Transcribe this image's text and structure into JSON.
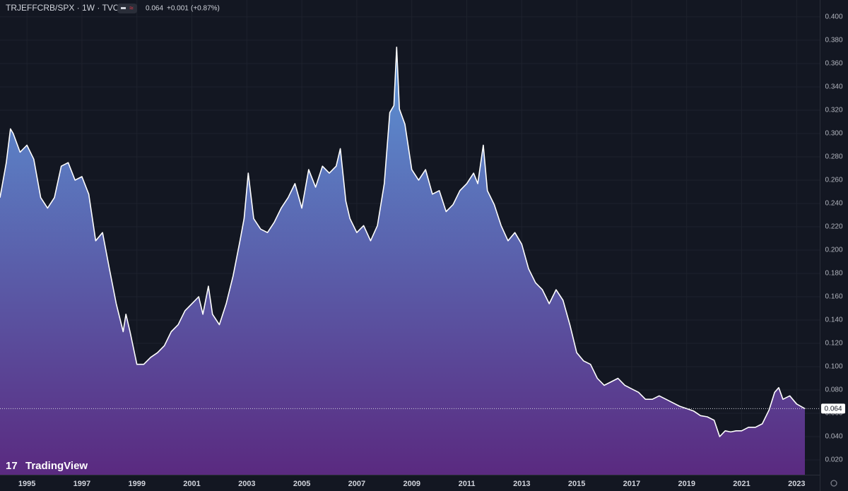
{
  "header": {
    "symbol": "TRJEFFCRB/SPX · 1W · TVC",
    "change": "+0.001",
    "change_pct": "(+0.87%)"
  },
  "brand": "TradingView",
  "chart_data": {
    "type": "area",
    "x": [
      1994.02,
      1994.25,
      1994.4,
      1994.5,
      1994.75,
      1995,
      1995.25,
      1995.5,
      1995.75,
      1996,
      1996.25,
      1996.5,
      1996.75,
      1997,
      1997.25,
      1997.5,
      1997.75,
      1998,
      1998.25,
      1998.5,
      1998.6,
      1998.75,
      1999,
      1999.25,
      1999.5,
      1999.75,
      2000,
      2000.25,
      2000.5,
      2000.75,
      2001,
      2001.25,
      2001.4,
      2001.6,
      2001.75,
      2002,
      2002.25,
      2002.5,
      2002.75,
      2002.9,
      2003.05,
      2003.25,
      2003.5,
      2003.75,
      2004,
      2004.25,
      2004.5,
      2004.75,
      2005,
      2005.25,
      2005.5,
      2005.75,
      2006,
      2006.25,
      2006.4,
      2006.6,
      2006.75,
      2007,
      2007.25,
      2007.5,
      2007.75,
      2008,
      2008.2,
      2008.35,
      2008.45,
      2008.55,
      2008.75,
      2009,
      2009.25,
      2009.5,
      2009.75,
      2010,
      2010.25,
      2010.5,
      2010.75,
      2011,
      2011.25,
      2011.4,
      2011.6,
      2011.75,
      2012,
      2012.25,
      2012.5,
      2012.75,
      2013,
      2013.25,
      2013.5,
      2013.75,
      2014,
      2014.25,
      2014.5,
      2014.75,
      2015,
      2015.25,
      2015.5,
      2015.75,
      2016,
      2016.25,
      2016.5,
      2016.75,
      2017,
      2017.25,
      2017.5,
      2017.75,
      2018,
      2018.25,
      2018.5,
      2018.75,
      2019,
      2019.25,
      2019.5,
      2019.75,
      2020,
      2020.2,
      2020.4,
      2020.6,
      2020.8,
      2021,
      2021.25,
      2021.5,
      2021.75,
      2022,
      2022.2,
      2022.35,
      2022.5,
      2022.75,
      2023,
      2023.3
    ],
    "series": [
      {
        "color": "#ffffff",
        "fill_top": "#5b95d6",
        "fill_bottom": "#5a2a80",
        "values": [
          0.245,
          0.275,
          0.304,
          0.3,
          0.284,
          0.29,
          0.278,
          0.245,
          0.236,
          0.245,
          0.272,
          0.275,
          0.26,
          0.263,
          0.248,
          0.208,
          0.215,
          0.184,
          0.154,
          0.13,
          0.145,
          0.13,
          0.102,
          0.102,
          0.108,
          0.112,
          0.118,
          0.13,
          0.136,
          0.148,
          0.154,
          0.16,
          0.145,
          0.169,
          0.145,
          0.136,
          0.154,
          0.178,
          0.208,
          0.227,
          0.266,
          0.227,
          0.218,
          0.215,
          0.224,
          0.236,
          0.245,
          0.257,
          0.236,
          0.269,
          0.254,
          0.272,
          0.266,
          0.272,
          0.287,
          0.242,
          0.227,
          0.215,
          0.221,
          0.208,
          0.221,
          0.257,
          0.318,
          0.324,
          0.374,
          0.321,
          0.308,
          0.269,
          0.26,
          0.269,
          0.248,
          0.251,
          0.233,
          0.239,
          0.251,
          0.257,
          0.266,
          0.257,
          0.29,
          0.251,
          0.239,
          0.221,
          0.208,
          0.215,
          0.205,
          0.184,
          0.172,
          0.166,
          0.154,
          0.166,
          0.157,
          0.136,
          0.112,
          0.105,
          0.102,
          0.09,
          0.084,
          0.087,
          0.09,
          0.084,
          0.081,
          0.078,
          0.072,
          0.072,
          0.075,
          0.072,
          0.069,
          0.066,
          0.064,
          0.062,
          0.058,
          0.057,
          0.054,
          0.04,
          0.045,
          0.044,
          0.045,
          0.045,
          0.048,
          0.048,
          0.051,
          0.063,
          0.078,
          0.082,
          0.072,
          0.075,
          0.068,
          0.064
        ]
      }
    ],
    "xlim": [
      1994.02,
      2023.84
    ],
    "xticks": [
      1995,
      1997,
      1999,
      2001,
      2003,
      2005,
      2007,
      2009,
      2011,
      2013,
      2015,
      2017,
      2019,
      2021,
      2023
    ],
    "ylim": [
      0.0073,
      0.4145
    ],
    "yticks": [
      {
        "value": 0.02,
        "label": "0.020"
      },
      {
        "value": 0.04,
        "label": "0.040"
      },
      {
        "value": 0.06,
        "label": "0.060"
      },
      {
        "value": 0.08,
        "label": "0.080"
      },
      {
        "value": 0.1,
        "label": "0.100"
      },
      {
        "value": 0.12,
        "label": "0.120"
      },
      {
        "value": 0.14,
        "label": "0.140"
      },
      {
        "value": 0.16,
        "label": "0.160"
      },
      {
        "value": 0.18,
        "label": "0.180"
      },
      {
        "value": 0.2,
        "label": "0.200"
      },
      {
        "value": 0.22,
        "label": "0.220"
      },
      {
        "value": 0.24,
        "label": "0.240"
      },
      {
        "value": 0.26,
        "label": "0.260"
      },
      {
        "value": 0.28,
        "label": "0.280"
      },
      {
        "value": 0.3,
        "label": "0.300"
      },
      {
        "value": 0.32,
        "label": "0.320"
      },
      {
        "value": 0.34,
        "label": "0.340"
      },
      {
        "value": 0.36,
        "label": "0.360"
      },
      {
        "value": 0.38,
        "label": "0.380"
      },
      {
        "value": 0.4,
        "label": "0.400"
      }
    ],
    "grid": true
  }
}
